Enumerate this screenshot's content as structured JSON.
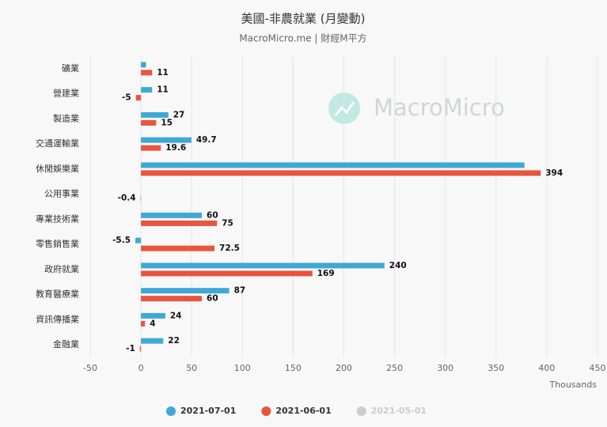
{
  "chart_data": {
    "type": "hbar",
    "title": "美國-非農就業 (月變動)",
    "subtitle": "MacroMicro.me | 財經M平方",
    "watermark": "MacroMicro",
    "x_label": "Thousands",
    "categories": [
      "礦業",
      "營建業",
      "製造業",
      "交通運輸業",
      "休閒娛樂業",
      "公用事業",
      "專業技術業",
      "零售銷售業",
      "政府就業",
      "教育醫療業",
      "資訊傳播業",
      "金融業"
    ],
    "series": [
      {
        "name": "2021-07-01",
        "color": "#3fa9d5",
        "values": [
          5,
          11,
          27,
          49.7,
          378,
          null,
          60,
          -5.5,
          240,
          87,
          24,
          22
        ],
        "value_labels": [
          null,
          "11",
          "27",
          "49.7",
          null,
          null,
          "60",
          "-5.5",
          "240",
          "87",
          "24",
          "22"
        ]
      },
      {
        "name": "2021-06-01",
        "color": "#e8553f",
        "values": [
          11,
          -5,
          15,
          19.6,
          394,
          -0.4,
          75,
          72.5,
          169,
          60,
          4,
          -1
        ],
        "value_labels": [
          "11",
          "-5",
          "15",
          "19.6",
          "394",
          "-0.4",
          "75",
          "72.5",
          "169",
          "60",
          "4",
          "-1"
        ]
      },
      {
        "name": "2021-05-01",
        "color": "#cccccc",
        "visible": false,
        "values": [
          null,
          null,
          null,
          null,
          null,
          null,
          null,
          null,
          null,
          null,
          null,
          null
        ],
        "value_labels": [
          null,
          null,
          null,
          null,
          null,
          null,
          null,
          null,
          null,
          null,
          null,
          null
        ]
      }
    ],
    "xlim": [
      -50,
      450
    ],
    "xticks": [
      -50,
      0,
      50,
      100,
      150,
      200,
      250,
      300,
      350,
      400,
      450
    ],
    "grid": true
  }
}
